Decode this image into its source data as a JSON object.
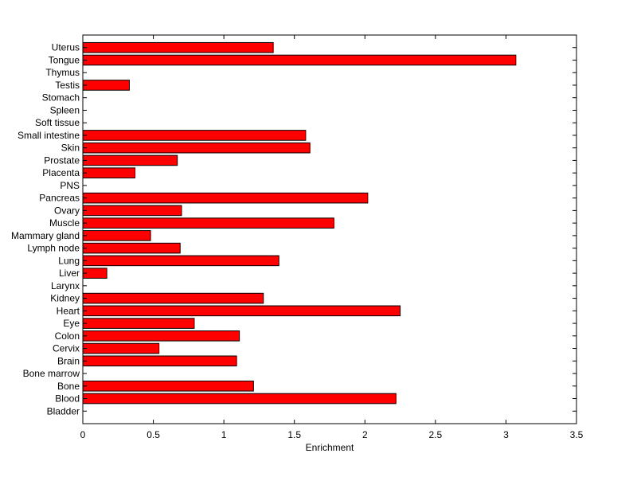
{
  "chart_data": {
    "type": "bar",
    "orientation": "horizontal",
    "xlabel": "Enrichment",
    "ylabel": "",
    "title": "",
    "xlim": [
      0,
      3.5
    ],
    "xticks": [
      "0",
      "0.5",
      "1",
      "1.5",
      "2",
      "2.5",
      "3",
      "3.5"
    ],
    "grid": false,
    "bar_color": "#ff0000",
    "bar_edge_color": "#000000",
    "categories": [
      "Bladder",
      "Blood",
      "Bone",
      "Bone marrow",
      "Brain",
      "Cervix",
      "Colon",
      "Eye",
      "Heart",
      "Kidney",
      "Larynx",
      "Liver",
      "Lung",
      "Lymph node",
      "Mammary gland",
      "Muscle",
      "Ovary",
      "Pancreas",
      "PNS",
      "Placenta",
      "Prostate",
      "Skin",
      "Small intestine",
      "Soft tissue",
      "Spleen",
      "Stomach",
      "Testis",
      "Thymus",
      "Tongue",
      "Uterus"
    ],
    "values": [
      0,
      2.22,
      1.21,
      0,
      1.09,
      0.54,
      1.11,
      0.79,
      2.25,
      1.28,
      0,
      0.17,
      1.39,
      0.69,
      0.48,
      1.78,
      0.7,
      2.02,
      0,
      0.37,
      0.67,
      1.61,
      1.58,
      0,
      0,
      0,
      0.33,
      0,
      3.07,
      1.35
    ]
  }
}
